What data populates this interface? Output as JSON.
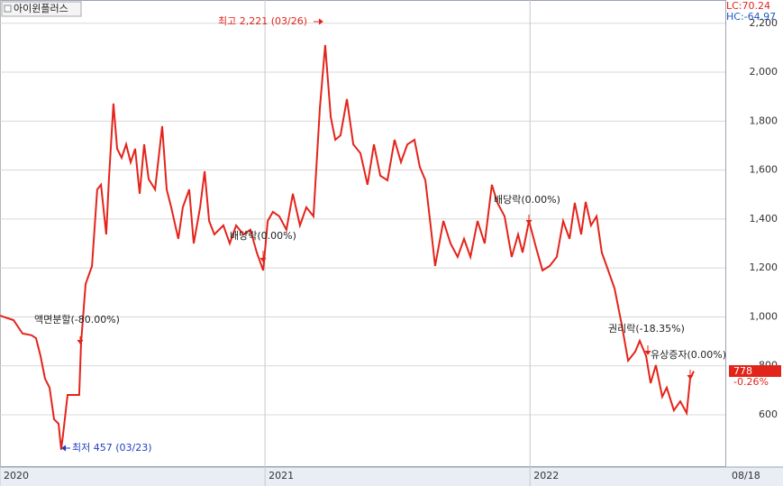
{
  "chart_data": {
    "type": "line",
    "title": "아이윈플러스",
    "lc_label": "LC:70.24",
    "hc_label": "HC:-64.97",
    "price_label": "778",
    "change_label": "-0.26%",
    "x_end_label": "08/18",
    "annotations": [
      "최고 2,221 (03/26)",
      "최저 457 (03/23)",
      "액면분할(-80.00%)",
      "배당락(0.00%)",
      "배당락(0.00%)",
      "권리락(-18.35%)",
      "유상증자(0.00%)"
    ],
    "xlim": [
      2020,
      2022.737
    ],
    "xticks": [
      2020,
      2021,
      2022
    ],
    "ylim": [
      390,
      2295
    ],
    "yticks": [
      600,
      800,
      {
        "value": 1000,
        "label": "1,000"
      },
      {
        "value": 1200,
        "label": "1,200"
      },
      {
        "value": 1400,
        "label": "1,400"
      },
      {
        "value": 1600,
        "label": "1,600"
      },
      {
        "value": 1800,
        "label": "1,800"
      },
      {
        "value": 2000,
        "label": "2,000"
      },
      {
        "value": 2200,
        "label": "2,200"
      }
    ],
    "grid": true,
    "series": [
      {
        "name": "아이윈플러스",
        "color": "#e3241b",
        "x": [
          2020,
          2020.051,
          2020.085,
          2020.119,
          2020.136,
          2020.153,
          2020.17,
          2020.187,
          2020.204,
          2020.221,
          2020.231,
          2020.238,
          2020.255,
          2020.299,
          2020.306,
          2020.323,
          2020.347,
          2020.367,
          2020.381,
          2020.401,
          2020.411,
          2020.428,
          2020.442,
          2020.459,
          2020.476,
          2020.493,
          2020.51,
          2020.527,
          2020.544,
          2020.561,
          2020.585,
          2020.612,
          2020.629,
          2020.646,
          2020.673,
          2020.69,
          2020.714,
          2020.731,
          2020.755,
          2020.772,
          2020.789,
          2020.809,
          2020.843,
          2020.867,
          2020.891,
          2020.918,
          2020.945,
          2020.969,
          2020.993,
          2021.01,
          2021.03,
          2021.054,
          2021.081,
          2021.105,
          2021.132,
          2021.156,
          2021.183,
          2021.207,
          2021.227,
          2021.248,
          2021.265,
          2021.285,
          2021.309,
          2021.333,
          2021.36,
          2021.387,
          2021.411,
          2021.435,
          2021.462,
          2021.489,
          2021.513,
          2021.537,
          2021.564,
          2021.584,
          2021.605,
          2021.625,
          2021.642,
          2021.673,
          2021.7,
          2021.727,
          2021.751,
          2021.775,
          2021.802,
          2021.829,
          2021.856,
          2021.877,
          2021.904,
          2021.931,
          2021.955,
          2021.972,
          2021.996,
          2022.023,
          2022.047,
          2022.074,
          2022.101,
          2022.125,
          2022.149,
          2022.169,
          2022.193,
          2022.21,
          2022.23,
          2022.251,
          2022.271,
          2022.295,
          2022.319,
          2022.346,
          2022.37,
          2022.397,
          2022.414,
          2022.438,
          2022.455,
          2022.475,
          2022.499,
          2022.516,
          2022.543,
          2022.567,
          2022.591,
          2022.604,
          2022.618
        ],
        "values": [
          1005,
          987,
          932,
          925,
          913,
          840,
          747,
          711,
          582,
          563,
          457,
          520,
          681,
          681,
          895,
          1134,
          1208,
          1521,
          1540,
          1337,
          1563,
          1872,
          1687,
          1650,
          1705,
          1632,
          1687,
          1503,
          1705,
          1563,
          1521,
          1779,
          1521,
          1448,
          1319,
          1448,
          1521,
          1300,
          1448,
          1595,
          1392,
          1337,
          1374,
          1300,
          1374,
          1337,
          1356,
          1263,
          1190,
          1392,
          1429,
          1411,
          1356,
          1503,
          1374,
          1448,
          1411,
          1853,
          2111,
          1816,
          1724,
          1742,
          1890,
          1705,
          1669,
          1540,
          1705,
          1577,
          1558,
          1724,
          1632,
          1705,
          1724,
          1613,
          1558,
          1374,
          1208,
          1392,
          1300,
          1245,
          1319,
          1245,
          1392,
          1300,
          1540,
          1466,
          1411,
          1245,
          1337,
          1263,
          1392,
          1282,
          1190,
          1208,
          1245,
          1392,
          1319,
          1466,
          1337,
          1470,
          1374,
          1411,
          1263,
          1190,
          1116,
          969,
          821,
          858,
          902,
          840,
          729,
          803,
          674,
          711,
          618,
          655,
          607,
          747,
          778
        ]
      }
    ]
  }
}
